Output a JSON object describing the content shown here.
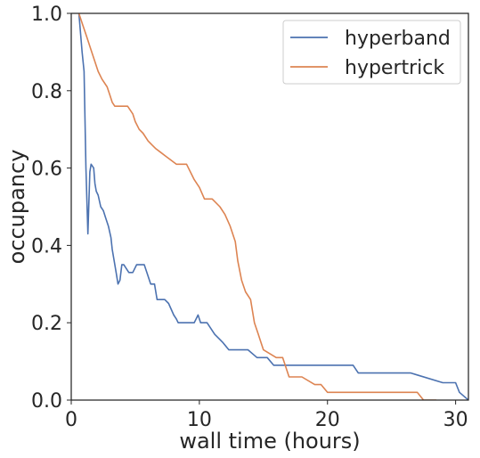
{
  "chart_data": {
    "type": "line",
    "title": "",
    "xlabel": "wall time (hours)",
    "ylabel": "occupancy",
    "xlim": [
      0,
      31
    ],
    "ylim": [
      0,
      1.0
    ],
    "x_ticks": [
      0,
      10,
      20,
      30
    ],
    "y_ticks": [
      0.0,
      0.2,
      0.4,
      0.6,
      0.8,
      1.0
    ],
    "x_tick_labels": [
      "0",
      "10",
      "20",
      "30"
    ],
    "y_tick_labels": [
      "0.0",
      "0.2",
      "0.4",
      "0.6",
      "0.8",
      "1.0"
    ],
    "grid": false,
    "legend_position": "top-right",
    "series": [
      {
        "name": "hyperband",
        "color": "#4c72b0",
        "x": [
          0.6,
          0.85,
          1.0,
          1.15,
          1.3,
          1.45,
          1.55,
          1.75,
          1.85,
          1.95,
          2.1,
          2.3,
          2.5,
          2.7,
          2.9,
          3.1,
          3.2,
          3.35,
          3.5,
          3.65,
          3.8,
          3.95,
          4.1,
          4.5,
          4.8,
          5.1,
          5.4,
          5.7,
          5.9,
          6.2,
          6.5,
          6.7,
          7.0,
          7.3,
          7.6,
          8.0,
          8.2,
          8.35,
          8.6,
          9.0,
          9.6,
          9.9,
          10.1,
          10.3,
          10.6,
          11.2,
          11.8,
          12.3,
          13.0,
          13.8,
          14.5,
          15.0,
          15.3,
          15.8,
          16.5,
          18.0,
          20.0,
          22.0,
          22.4,
          25.0,
          26.5,
          27.0,
          29.0,
          30.0,
          30.3,
          31.0
        ],
        "y": [
          1.0,
          0.9,
          0.85,
          0.6,
          0.43,
          0.59,
          0.61,
          0.6,
          0.56,
          0.54,
          0.53,
          0.5,
          0.49,
          0.47,
          0.45,
          0.42,
          0.39,
          0.36,
          0.33,
          0.3,
          0.31,
          0.35,
          0.35,
          0.33,
          0.33,
          0.35,
          0.35,
          0.35,
          0.33,
          0.3,
          0.3,
          0.26,
          0.26,
          0.26,
          0.25,
          0.22,
          0.21,
          0.2,
          0.2,
          0.2,
          0.2,
          0.22,
          0.2,
          0.2,
          0.2,
          0.17,
          0.15,
          0.13,
          0.13,
          0.13,
          0.11,
          0.11,
          0.11,
          0.09,
          0.09,
          0.09,
          0.09,
          0.09,
          0.07,
          0.07,
          0.07,
          0.065,
          0.045,
          0.045,
          0.02,
          0.0
        ]
      },
      {
        "name": "hypertrick",
        "color": "#dd8452",
        "x": [
          0.6,
          0.9,
          1.2,
          1.5,
          1.8,
          2.1,
          2.4,
          2.8,
          3.0,
          3.2,
          3.4,
          3.7,
          4.0,
          4.4,
          4.8,
          5.0,
          5.3,
          5.6,
          6.0,
          6.3,
          6.6,
          7.0,
          7.4,
          7.8,
          8.2,
          8.6,
          9.0,
          9.6,
          10.0,
          10.4,
          11.0,
          11.6,
          12.0,
          12.4,
          12.8,
          13.0,
          13.3,
          13.6,
          14.0,
          14.3,
          14.6,
          14.8,
          15.0,
          15.5,
          16.0,
          16.5,
          17.0,
          17.5,
          18.0,
          19.0,
          19.5,
          20.0,
          21.0,
          23.0,
          25.0,
          27.0,
          27.5,
          28.5
        ],
        "y": [
          1.0,
          0.97,
          0.94,
          0.91,
          0.88,
          0.85,
          0.83,
          0.81,
          0.79,
          0.77,
          0.76,
          0.76,
          0.76,
          0.76,
          0.74,
          0.72,
          0.7,
          0.69,
          0.67,
          0.66,
          0.65,
          0.64,
          0.63,
          0.62,
          0.61,
          0.61,
          0.61,
          0.57,
          0.55,
          0.52,
          0.52,
          0.5,
          0.48,
          0.45,
          0.41,
          0.36,
          0.31,
          0.28,
          0.26,
          0.2,
          0.17,
          0.15,
          0.13,
          0.12,
          0.11,
          0.11,
          0.06,
          0.06,
          0.06,
          0.04,
          0.04,
          0.02,
          0.02,
          0.02,
          0.02,
          0.02,
          0.0,
          0.0
        ]
      }
    ]
  }
}
